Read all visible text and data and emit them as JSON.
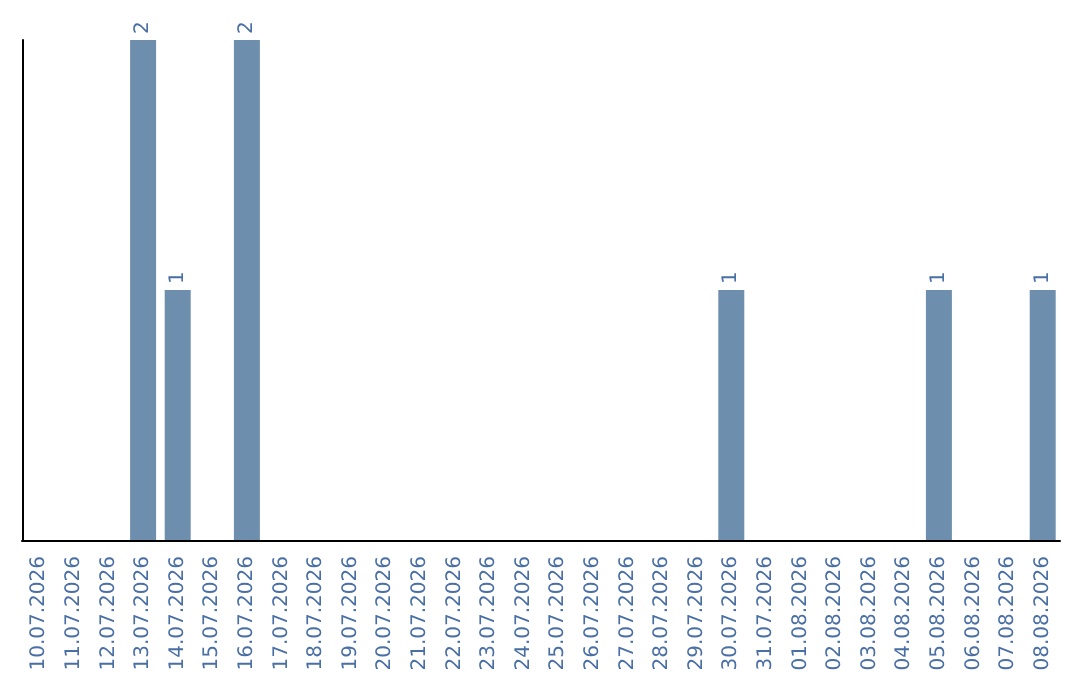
{
  "chart_data": {
    "type": "bar",
    "categories": [
      "10.07.2026",
      "11.07.2026",
      "12.07.2026",
      "13.07.2026",
      "14.07.2026",
      "15.07.2026",
      "16.07.2026",
      "17.07.2026",
      "18.07.2026",
      "19.07.2026",
      "20.07.2026",
      "21.07.2026",
      "22.07.2026",
      "23.07.2026",
      "24.07.2026",
      "25.07.2026",
      "26.07.2026",
      "27.07.2026",
      "28.07.2026",
      "29.07.2026",
      "30.07.2026",
      "31.07.2026",
      "01.08.2026",
      "02.08.2026",
      "03.08.2026",
      "04.08.2026",
      "05.08.2026",
      "06.08.2026",
      "07.08.2026",
      "08.08.2026"
    ],
    "values": [
      0,
      0,
      0,
      2,
      1,
      0,
      2,
      0,
      0,
      0,
      0,
      0,
      0,
      0,
      0,
      0,
      0,
      0,
      0,
      0,
      1,
      0,
      0,
      0,
      0,
      0,
      1,
      0,
      0,
      1
    ],
    "value_labels": [
      null,
      null,
      null,
      "2",
      "1",
      null,
      "2",
      null,
      null,
      null,
      null,
      null,
      null,
      null,
      null,
      null,
      null,
      null,
      null,
      null,
      "1",
      null,
      null,
      null,
      null,
      null,
      "1",
      null,
      null,
      "1"
    ],
    "color": "#6d8fad",
    "tick_labels": "x"
  }
}
